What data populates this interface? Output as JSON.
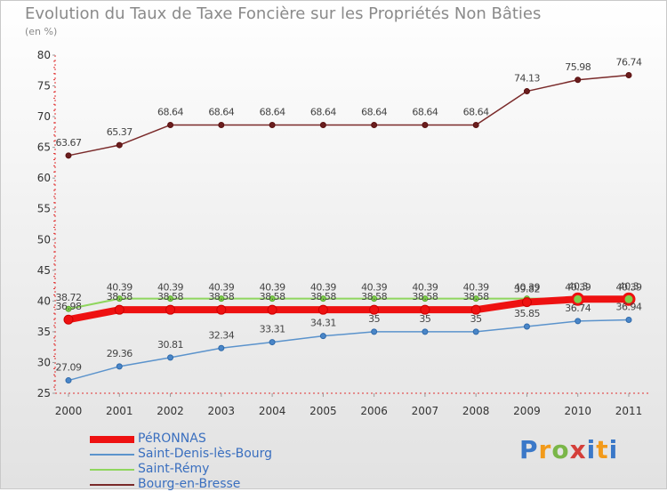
{
  "chart_data": {
    "type": "line",
    "title": "Evolution du Taux de Taxe Foncière sur les Propriétés Non Bâties",
    "ylabel": "(en %)",
    "xlabel": "",
    "ylim": [
      25,
      80
    ],
    "yticks": [
      25,
      30,
      35,
      40,
      45,
      50,
      55,
      60,
      65,
      70,
      75,
      80
    ],
    "categories": [
      "2000",
      "2001",
      "2002",
      "2003",
      "2004",
      "2005",
      "2006",
      "2007",
      "2008",
      "2009",
      "2010",
      "2011"
    ],
    "series": [
      {
        "name": "Bourg-en-Bresse",
        "color": "#7a2a2a",
        "values": [
          63.67,
          65.37,
          68.64,
          68.64,
          68.64,
          68.64,
          68.64,
          68.64,
          68.64,
          74.13,
          75.98,
          76.74
        ],
        "labels": [
          "63.67",
          "65.37",
          "68.64",
          "68.64",
          "68.64",
          "68.64",
          "68.64",
          "68.64",
          "68.64",
          "74.13",
          "75.98",
          "76.74"
        ]
      },
      {
        "name": "Saint-Rémy",
        "color": "#8fd65e",
        "values": [
          38.72,
          40.39,
          40.39,
          40.39,
          40.39,
          40.39,
          40.39,
          40.39,
          40.39,
          40.39,
          40.39,
          40.39
        ],
        "labels": [
          "38.72",
          "40.39",
          "40.39",
          "40.39",
          "40.39",
          "40.39",
          "40.39",
          "40.39",
          "40.39",
          "40.39",
          "40.39",
          "40.39"
        ]
      },
      {
        "name": "Saint-Denis-lès-Bourg",
        "color": "#5b93cc",
        "values": [
          27.09,
          29.36,
          30.81,
          32.34,
          33.31,
          34.31,
          35,
          35,
          35,
          35.85,
          36.74,
          36.94
        ],
        "labels": [
          "27.09",
          "29.36",
          "30.81",
          "32.34",
          "33.31",
          "34.31",
          "35",
          "35",
          "35",
          "35.85",
          "36.74",
          "36.94"
        ]
      },
      {
        "name": "PéRONNAS",
        "color": "#ee1111",
        "values": [
          36.98,
          38.58,
          38.58,
          38.58,
          38.58,
          38.58,
          38.58,
          38.58,
          38.58,
          39.82,
          40.3,
          40.3
        ],
        "labels": [
          "36.98",
          "38.58",
          "38.58",
          "38.58",
          "38.58",
          "38.58",
          "38.58",
          "38.58",
          "38.58",
          "39.82",
          "40.3",
          "40.3"
        ]
      }
    ],
    "legend": [
      "PéRONNAS",
      "Saint-Denis-lès-Bourg",
      "Saint-Rémy",
      "Bourg-en-Bresse"
    ],
    "legend_position": "bottom-left",
    "grid": false
  },
  "logo": {
    "parts": [
      "P",
      "r",
      "o",
      "x",
      "i",
      "t",
      "i"
    ]
  }
}
